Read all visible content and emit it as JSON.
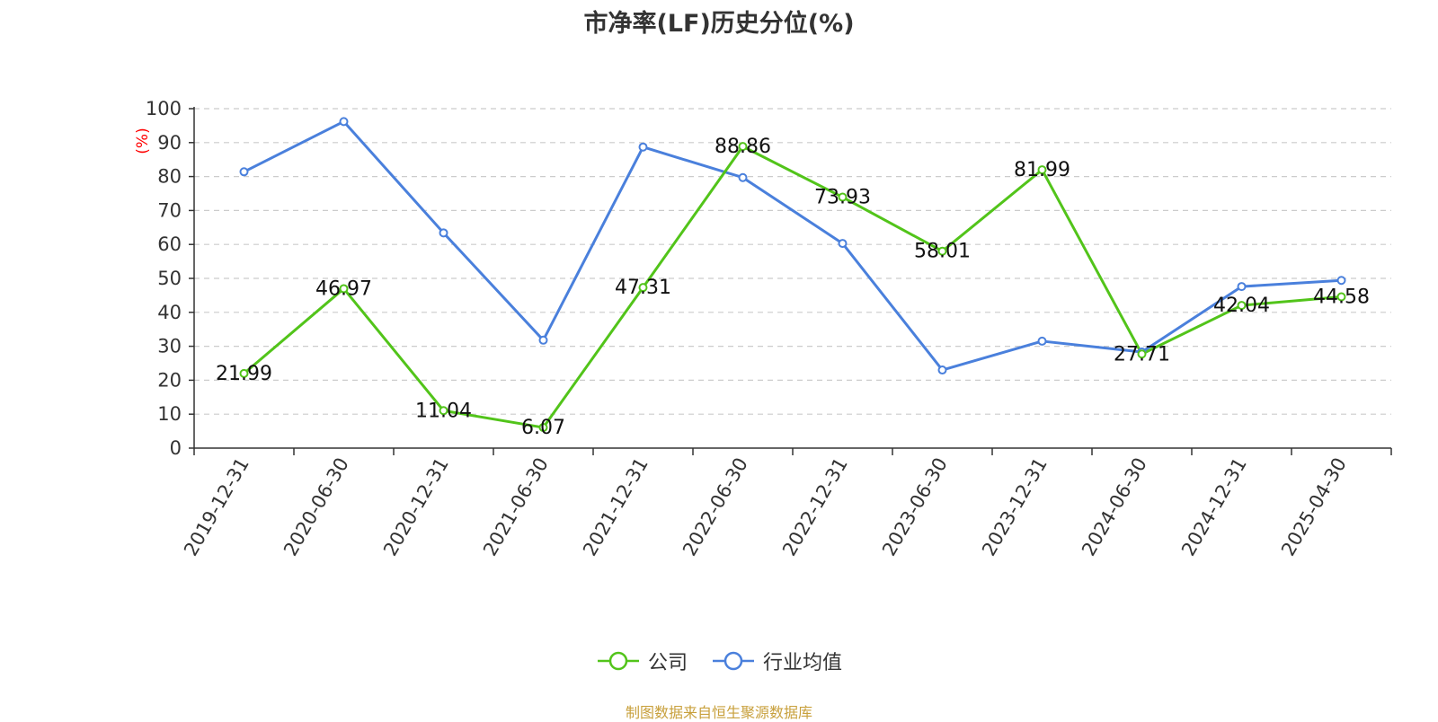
{
  "chart_data": {
    "type": "line",
    "title": "市净率(LF)历史分位(%)",
    "ylabel": "(%)",
    "xlabel": "",
    "ylim": [
      0,
      100
    ],
    "yticks": [
      0,
      10,
      20,
      30,
      40,
      50,
      60,
      70,
      80,
      90,
      100
    ],
    "categories": [
      "2019-12-31",
      "2020-06-30",
      "2020-12-31",
      "2021-06-30",
      "2021-12-31",
      "2022-06-30",
      "2022-12-31",
      "2023-06-30",
      "2023-12-31",
      "2024-06-30",
      "2024-12-31",
      "2025-04-30"
    ],
    "series": [
      {
        "name": "公司",
        "color": "#52c41a",
        "show_labels": true,
        "values": [
          21.99,
          46.97,
          11.04,
          6.07,
          47.31,
          88.86,
          73.93,
          58.01,
          81.99,
          27.71,
          42.04,
          44.58
        ]
      },
      {
        "name": "行业均值",
        "color": "#4a80dc",
        "show_labels": false,
        "values": [
          81.4,
          96.2,
          63.4,
          31.8,
          88.7,
          79.7,
          60.3,
          23.0,
          31.5,
          28.3,
          47.6,
          49.4
        ]
      }
    ],
    "grid": "horizontal-dashed",
    "legend_position": "bottom-center",
    "ylabel_color": "#ff0000"
  },
  "footer": {
    "source": "制图数据来自恒生聚源数据库"
  }
}
